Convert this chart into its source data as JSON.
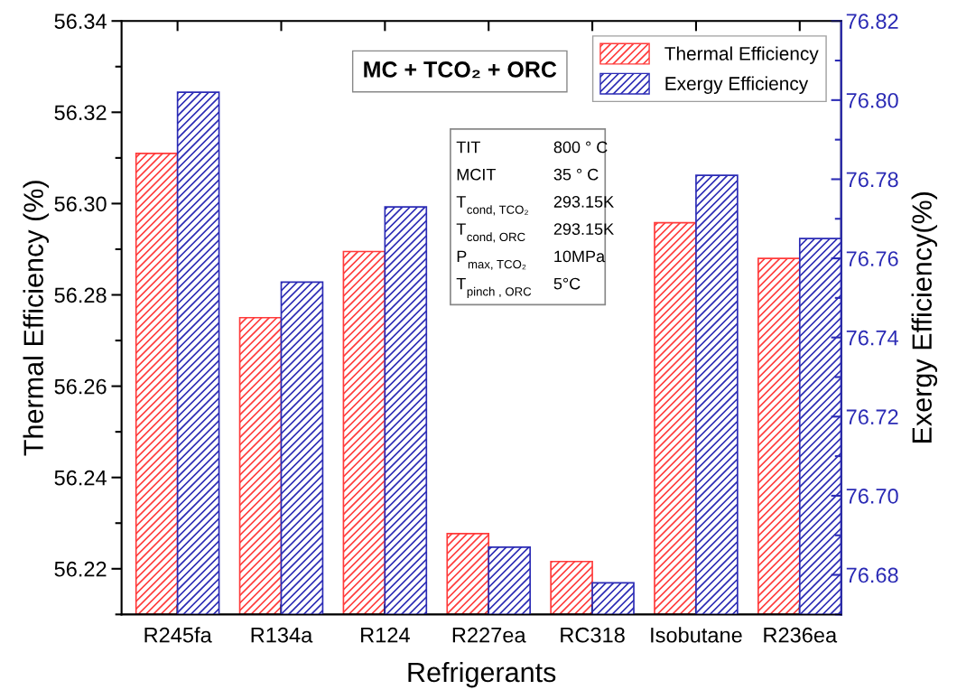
{
  "chart_data": {
    "type": "bar",
    "title": "MC + TCO₂ + ORC",
    "xlabel": "Refrigerants",
    "ylabel": "Thermal Efficiency (%)",
    "y2label": "Exergy Efficiency(%)",
    "categories": [
      "R245fa",
      "R134a",
      "R124",
      "R227ea",
      "RC318",
      "Isobutane",
      "R236ea"
    ],
    "series": [
      {
        "name": "Thermal Efficiency",
        "color": "#ff3b3b",
        "values": [
          56.311,
          56.275,
          56.2895,
          56.2277,
          56.2216,
          56.2958,
          56.288
        ]
      },
      {
        "name": "Exergy Efficiency",
        "color": "#2b2bb5",
        "axis": "y2",
        "values": [
          76.802,
          76.754,
          76.773,
          76.687,
          76.678,
          76.781,
          76.765
        ]
      }
    ],
    "ylim": [
      56.21,
      56.34
    ],
    "yticks": [
      {
        "value": 56.21,
        "label": null
      },
      56.22,
      {
        "value": 56.23,
        "label": null
      },
      56.24,
      {
        "value": 56.25,
        "label": null
      },
      56.26,
      {
        "value": 56.27,
        "label": null
      },
      56.28,
      {
        "value": 56.29,
        "label": null
      },
      {
        "value": 56.3,
        "label": "56.30"
      },
      {
        "value": 56.31,
        "label": null
      },
      56.32,
      {
        "value": 56.33,
        "label": null
      },
      56.34
    ],
    "y2lim": [
      76.67,
      76.82
    ],
    "y2ticks": [
      {
        "value": 76.67,
        "label": null
      },
      76.68,
      {
        "value": 76.69,
        "label": null
      },
      {
        "value": 76.7,
        "label": "76.70"
      },
      {
        "value": 76.71,
        "label": null
      },
      76.72,
      {
        "value": 76.73,
        "label": null
      },
      76.74,
      {
        "value": 76.75,
        "label": null
      },
      76.76,
      {
        "value": 76.77,
        "label": null
      },
      76.78,
      {
        "value": 76.79,
        "label": null
      },
      {
        "value": 76.8,
        "label": "76.80"
      },
      {
        "value": 76.81,
        "label": null
      },
      76.82
    ],
    "annotations": [
      "TIT",
      "800 ° C",
      "MCIT",
      "35 ° C",
      "T$_{cond, TCO₂}$",
      "293.15K",
      "T$_{cond, ORC}$",
      "293.15K",
      "P$_{max, TCO₂}$",
      "10MPa",
      "T$_{pinch , ORC}$",
      "5°C"
    ],
    "legend": "top right",
    "grid": false
  }
}
